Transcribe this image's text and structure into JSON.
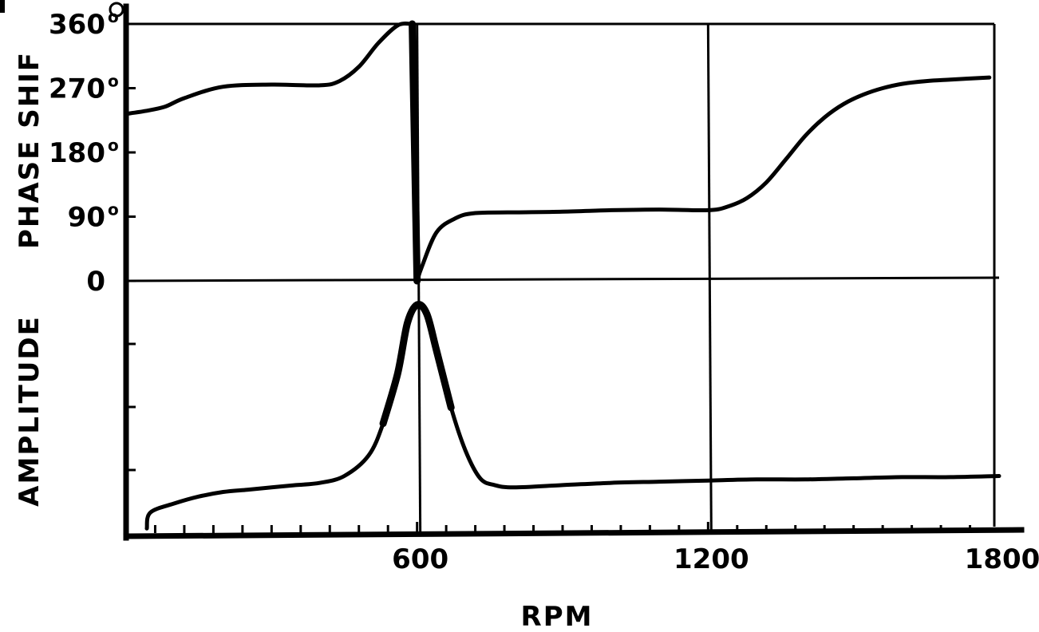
{
  "chart_data": {
    "type": "line",
    "xlabel": "RPM",
    "x_tick_labels": [
      "600",
      "1200",
      "1800"
    ],
    "xlim": [
      0,
      1800
    ],
    "panels": [
      {
        "ylabel": "PHASE SHIF",
        "y_tick_labels": [
          "0",
          "90",
          "180",
          "270",
          "360"
        ],
        "y_tick_units": "o",
        "ylim": [
          0,
          360
        ],
        "series": [
          {
            "x": [
              0,
              40,
              80,
              120,
              200,
              300,
              400,
              440,
              480,
              520,
              560,
              590,
              600,
              610,
              640,
              680,
              720,
              800,
              900,
              1000,
              1100,
              1200,
              1240,
              1280,
              1320,
              1360,
              1400,
              1440,
              1480,
              1520,
              1560,
              1600,
              1650,
              1700,
              1780
            ],
            "y": [
              234,
              238,
              244,
              256,
              272,
              275,
              274,
              280,
              300,
              333,
              358,
              360,
              0,
              20,
              68,
              88,
              95,
              96,
              97,
              99,
              100,
              99,
              104,
              116,
              138,
              170,
              203,
              229,
              248,
              261,
              270,
              276,
              280,
              282,
              285
            ]
          }
        ]
      },
      {
        "ylabel": "AMPLITUDE",
        "ylim": [
          0,
          1
        ],
        "series": [
          {
            "x": [
              0,
              50,
              100,
              150,
              200,
              250,
              300,
              350,
              400,
              450,
              500,
              530,
              560,
              580,
              600,
              620,
              640,
              670,
              700,
              730,
              760,
              800,
              900,
              1000,
              1100,
              1200,
              1300,
              1400,
              1500,
              1600,
              1700,
              1800
            ],
            "y": [
              0.02,
              0.09,
              0.13,
              0.16,
              0.18,
              0.19,
              0.2,
              0.21,
              0.22,
              0.25,
              0.34,
              0.48,
              0.7,
              0.92,
              1.0,
              0.96,
              0.8,
              0.55,
              0.36,
              0.24,
              0.21,
              0.2,
              0.21,
              0.22,
              0.225,
              0.23,
              0.235,
              0.235,
              0.24,
              0.245,
              0.245,
              0.25
            ]
          }
        ]
      }
    ]
  }
}
